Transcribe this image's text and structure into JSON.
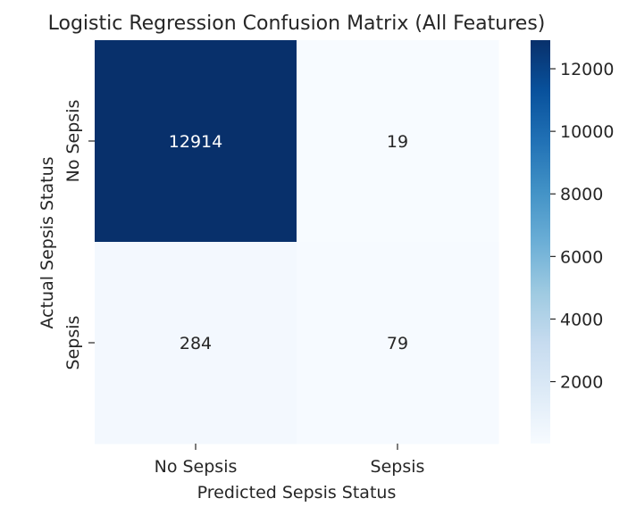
{
  "chart_data": {
    "type": "heatmap",
    "title": "Logistic Regression Confusion Matrix (All Features)",
    "xlabel": "Predicted Sepsis Status",
    "ylabel": "Actual Sepsis Status",
    "x_categories": [
      "No Sepsis",
      "Sepsis"
    ],
    "y_categories": [
      "No Sepsis",
      "Sepsis"
    ],
    "values": [
      [
        12914,
        19
      ],
      [
        284,
        79
      ]
    ],
    "colormap": "Blues",
    "colorbar": {
      "min": 19,
      "max": 12914,
      "ticks": [
        2000,
        4000,
        6000,
        8000,
        10000,
        12000
      ]
    },
    "colors": {
      "low": "#f7fbff",
      "high": "#08306b",
      "text_dark": "#262626",
      "text_light": "#ffffff"
    }
  }
}
